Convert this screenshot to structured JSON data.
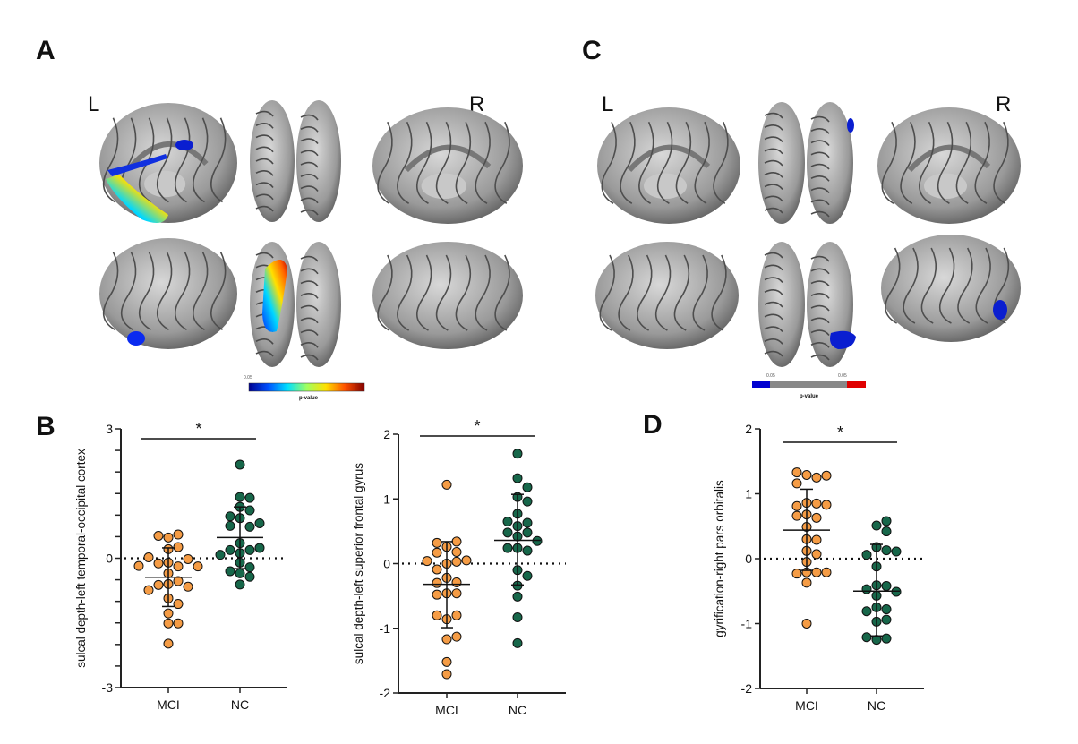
{
  "panels": {
    "A": {
      "letter": "A",
      "left_label": "L",
      "right_label": "R",
      "colorbar": {
        "tick": "0.05",
        "title": "p-value",
        "colors": [
          "#00008f",
          "#0050ff",
          "#00e0ff",
          "#a0ff60",
          "#ffe000",
          "#ff5000",
          "#800000"
        ]
      }
    },
    "C": {
      "letter": "C",
      "left_label": "L",
      "right_label": "R",
      "colorbar": {
        "tick_left": "0.05",
        "tick_right": "0.05",
        "title": "p-value",
        "colors": [
          "#0000d0",
          "#888888",
          "#ff0000"
        ]
      }
    },
    "B": {
      "letter": "B"
    },
    "D": {
      "letter": "D"
    }
  },
  "colors": {
    "MCI": "#f59c45",
    "NC": "#17674a",
    "brain": "#9a9a9a",
    "highlight_blue": "#0a1ed0"
  },
  "chart_data": [
    {
      "id": "B-left",
      "type": "scatter",
      "ylabel": "sulcal depth-left temporal-occipital cortex",
      "ylim": [
        -3,
        3
      ],
      "yticks": [
        "-3",
        "0",
        "3"
      ],
      "ytick_values": [
        -3,
        0,
        3
      ],
      "categories": [
        "MCI",
        "NC"
      ],
      "reference_line": 0,
      "significance": "*",
      "series": [
        {
          "name": "MCI",
          "mean": -0.44,
          "sd_range": [
            -1.12,
            0.24
          ],
          "values": [
            0.48,
            0.55,
            0.52,
            0.21,
            0.26,
            -0.1,
            -0.19,
            -0.12,
            -0.02,
            0.02,
            -0.19,
            -0.18,
            -0.35,
            -0.6,
            -0.53,
            -0.62,
            -0.66,
            -0.74,
            -0.93,
            -1.06,
            -1.28,
            -1.51,
            -1.51,
            -1.98
          ]
        },
        {
          "name": "NC",
          "mean": 0.48,
          "sd_range": [
            -0.24,
            1.19
          ],
          "values": [
            2.17,
            1.42,
            1.4,
            1.19,
            1.11,
            0.93,
            0.97,
            0.73,
            0.75,
            0.81,
            0.35,
            0.19,
            0.19,
            0.24,
            0.12,
            0.08,
            -0.1,
            -0.21,
            -0.3,
            -0.35,
            -0.43,
            -0.61
          ]
        }
      ]
    },
    {
      "id": "B-right",
      "type": "scatter",
      "ylabel": "sulcal depth-left superior frontal gyrus",
      "ylim": [
        -2,
        2
      ],
      "yticks": [
        "-2",
        "-1",
        "0",
        "1",
        "2"
      ],
      "ytick_values": [
        -2,
        -1,
        0,
        1,
        2
      ],
      "categories": [
        "MCI",
        "NC"
      ],
      "reference_line": 0,
      "significance": "*",
      "series": [
        {
          "name": "MCI",
          "mean": -0.32,
          "sd_range": [
            -0.99,
            0.34
          ],
          "values": [
            1.22,
            0.26,
            0.34,
            0.32,
            0.18,
            0.17,
            0.0,
            0.03,
            0.05,
            0.04,
            -0.09,
            -0.22,
            -0.29,
            -0.3,
            -0.46,
            -0.46,
            -0.48,
            -0.86,
            -0.8,
            -0.8,
            -1.17,
            -1.13,
            -1.52,
            -1.71
          ]
        },
        {
          "name": "NC",
          "mean": 0.36,
          "sd_range": [
            -0.33,
            1.07
          ],
          "values": [
            1.7,
            1.32,
            1.18,
            1.03,
            0.96,
            0.77,
            0.58,
            0.63,
            0.65,
            0.42,
            0.48,
            0.48,
            0.24,
            0.35,
            0.2,
            0.24,
            -0.1,
            -0.19,
            -0.34,
            -0.51,
            -0.83,
            -1.23
          ]
        }
      ]
    },
    {
      "id": "D",
      "type": "scatter",
      "ylabel": "gyrification-right pars orbitalis",
      "ylim": [
        -2,
        2
      ],
      "yticks": [
        "-2",
        "-1",
        "0",
        "1",
        "2"
      ],
      "ytick_values": [
        -2,
        -1,
        0,
        1,
        2
      ],
      "categories": [
        "MCI",
        "NC"
      ],
      "reference_line": 0,
      "significance": "*",
      "series": [
        {
          "name": "MCI",
          "mean": 0.44,
          "sd_range": [
            -0.18,
            1.07
          ],
          "values": [
            1.29,
            1.25,
            1.33,
            1.28,
            1.16,
            0.86,
            0.85,
            0.81,
            0.83,
            0.68,
            0.63,
            0.66,
            0.49,
            0.3,
            0.29,
            0.12,
            0.07,
            -0.05,
            -0.21,
            -0.21,
            -0.23,
            -0.21,
            -0.37,
            -1.0
          ]
        },
        {
          "name": "NC",
          "mean": -0.5,
          "sd_range": [
            -1.19,
            0.22
          ],
          "values": [
            0.51,
            0.58,
            0.42,
            0.18,
            0.13,
            0.06,
            0.11,
            -0.12,
            -0.41,
            -0.42,
            -0.57,
            -0.47,
            -0.51,
            -0.75,
            -0.78,
            -0.81,
            -0.97,
            -0.94,
            -1.25,
            -1.23,
            -1.21
          ]
        }
      ]
    }
  ]
}
